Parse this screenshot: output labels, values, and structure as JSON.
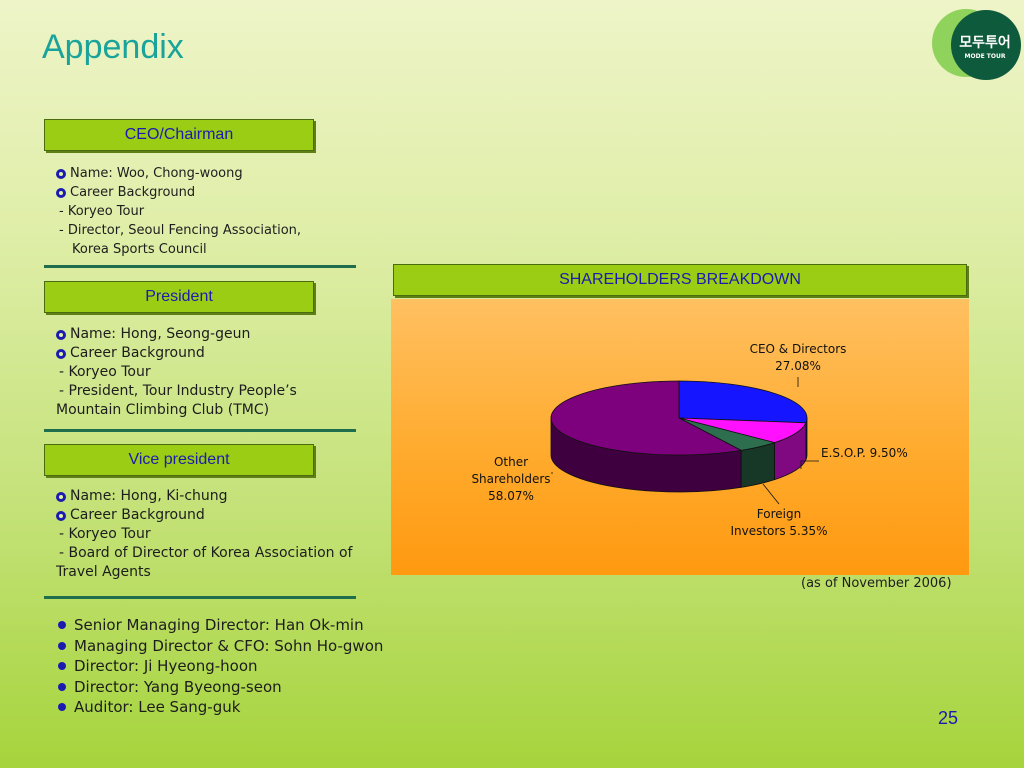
{
  "slide": {
    "title": "Appendix",
    "page_number": "25",
    "logo": {
      "korean": "모두투어",
      "english": "MODE TOUR",
      "icon": "mode-tour-logo"
    }
  },
  "ceo": {
    "header": "CEO/Chairman",
    "name": "Name: Woo, Chong-woong",
    "career_label": "Career Background",
    "career": [
      "- Koryeo Tour",
      "- Director, Seoul Fencing Association,",
      "Korea Sports Council"
    ]
  },
  "president": {
    "header": "President",
    "name": "Name: Hong, Seong-geun",
    "career_label": "Career Background",
    "career": [
      "- Koryeo Tour",
      "- President, Tour Industry People’s",
      "Mountain Climbing Club (TMC)"
    ]
  },
  "vice_president": {
    "header": "Vice president",
    "name": "Name: Hong, Ki-chung",
    "career_label": "Career Background",
    "career": [
      "- Koryeo Tour",
      "- Board of Director of Korea Association of",
      "Travel Agents"
    ]
  },
  "others": [
    "Senior Managing Director: Han Ok-min",
    "Managing Director & CFO: Sohn Ho-gwon",
    "Director: Ji Hyeong-hoon",
    "Director: Yang Byeong-seon",
    "Auditor: Lee Sang-guk"
  ],
  "shareholders": {
    "header": "SHAREHOLDERS BREAKDOWN",
    "as_of": "(as of November 2006)"
  },
  "chart_data": {
    "type": "pie",
    "title": "SHAREHOLDERS BREAKDOWN",
    "slices": [
      {
        "name": "CEO & Directors",
        "value": 27.08,
        "label_lines": [
          "CEO & Directors",
          "27.08%"
        ],
        "color": "#1515ff"
      },
      {
        "name": "E.S.O.P.",
        "value": 9.5,
        "label_lines": [
          "E.S.O.P. 9.50%"
        ],
        "color": "#ff10ff"
      },
      {
        "name": "Foreign Investors",
        "value": 5.35,
        "label_lines": [
          "Foreign",
          "Investors 5.35%"
        ],
        "color": "#2d6e4e"
      },
      {
        "name": "Other Shareholders",
        "value": 58.07,
        "label_lines": [
          "Other",
          "Shareholders",
          "58.07%"
        ],
        "color": "#7d007d"
      }
    ],
    "style": "3d"
  }
}
